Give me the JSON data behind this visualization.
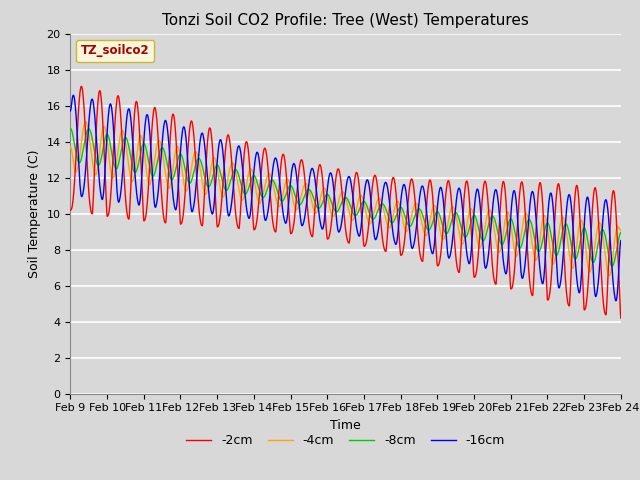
{
  "title": "Tonzi Soil CO2 Profile: Tree (West) Temperatures",
  "xlabel": "Time",
  "ylabel": "Soil Temperature (C)",
  "ylim": [
    0,
    20
  ],
  "yticks": [
    0,
    2,
    4,
    6,
    8,
    10,
    12,
    14,
    16,
    18,
    20
  ],
  "xtick_labels": [
    "Feb 9",
    "Feb 10",
    "Feb 11",
    "Feb 12",
    "Feb 13",
    "Feb 14",
    "Feb 15",
    "Feb 16",
    "Feb 17",
    "Feb 18",
    "Feb 19",
    "Feb 20",
    "Feb 21",
    "Feb 22",
    "Feb 23",
    "Feb 24"
  ],
  "legend_label": "TZ_soilco2",
  "series_labels": [
    "-2cm",
    "-4cm",
    "-8cm",
    "-16cm"
  ],
  "series_colors": [
    "#ff0000",
    "#ffa500",
    "#00cc00",
    "#0000ff"
  ],
  "background_color": "#d8d8d8",
  "plot_bg_color": "#d8d8d8",
  "grid_color": "#ffffff",
  "n_days": 15,
  "samples_per_day": 96
}
